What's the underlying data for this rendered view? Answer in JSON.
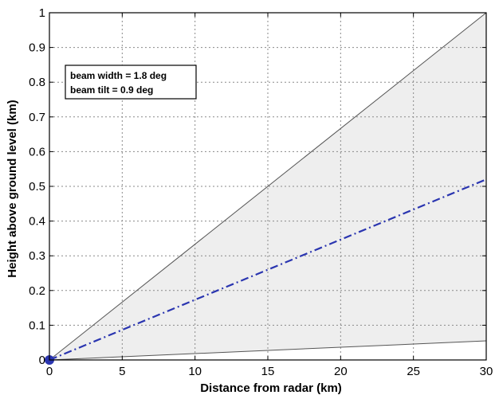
{
  "chart_data": {
    "type": "line",
    "title": "",
    "xlabel": "Distance from radar (km)",
    "ylabel": "Height above ground level (km)",
    "xlim": [
      0,
      30
    ],
    "ylim": [
      0,
      1
    ],
    "xticks": [
      0,
      5,
      10,
      15,
      20,
      25,
      30
    ],
    "yticks": [
      0,
      0.1,
      0.2,
      0.3,
      0.4,
      0.5,
      0.6,
      0.7,
      0.8,
      0.9,
      1
    ],
    "xtick_labels": [
      "0",
      "5",
      "10",
      "15",
      "20",
      "25",
      "30"
    ],
    "ytick_labels": [
      "0",
      "0.1",
      "0.2",
      "0.3",
      "0.4",
      "0.5",
      "0.6",
      "0.7",
      "0.8",
      "0.9",
      "1"
    ],
    "grid": true,
    "legend_placement": "top-left",
    "annotations": [
      "beam width = 1.8 deg",
      "beam tilt = 0.9 deg"
    ],
    "series": [
      {
        "role": "beam-top",
        "style": "solid",
        "color": "#555555",
        "x": [
          0,
          30
        ],
        "y": [
          0,
          1.0
        ]
      },
      {
        "role": "beam-center",
        "style": "dash-dot",
        "color": "#2a35b0",
        "x": [
          0,
          30
        ],
        "y": [
          0,
          0.52
        ]
      },
      {
        "role": "beam-bottom",
        "style": "solid",
        "color": "#555555",
        "x": [
          0,
          30
        ],
        "y": [
          0,
          0.055
        ]
      }
    ],
    "radar_marker": {
      "x": 0,
      "y": 0,
      "color": "#2a35b0"
    },
    "fill_color": "#eeeeee"
  }
}
